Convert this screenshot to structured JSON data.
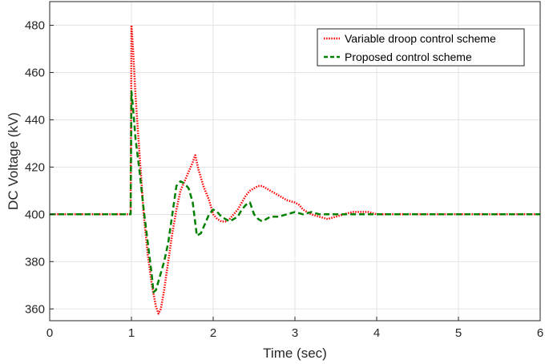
{
  "chart_data": {
    "type": "line",
    "title": "",
    "xlabel": "Time (sec)",
    "ylabel": "DC Voltage (kV)",
    "xlim": [
      0,
      6
    ],
    "ylim": [
      355,
      490
    ],
    "xticks": [
      "0",
      "1",
      "2",
      "3",
      "4",
      "5",
      "6"
    ],
    "yticks": [
      "360",
      "380",
      "400",
      "420",
      "440",
      "460",
      "480"
    ],
    "grid": true,
    "legend_position": "top-right",
    "series": [
      {
        "name": "Variable droop control scheme",
        "color": "#ff0000",
        "style": "dotted",
        "x": [
          0,
          0.5,
          0.99,
          1.0,
          1.02,
          1.05,
          1.1,
          1.15,
          1.2,
          1.25,
          1.3,
          1.33,
          1.36,
          1.4,
          1.45,
          1.5,
          1.55,
          1.6,
          1.65,
          1.7,
          1.75,
          1.78,
          1.82,
          1.88,
          1.95,
          2.0,
          2.05,
          2.1,
          2.15,
          2.2,
          2.25,
          2.3,
          2.35,
          2.4,
          2.45,
          2.5,
          2.55,
          2.6,
          2.7,
          2.8,
          2.9,
          3.0,
          3.05,
          3.1,
          3.2,
          3.3,
          3.4,
          3.5,
          3.6,
          3.7,
          3.8,
          3.9,
          4.0,
          4.2,
          4.4,
          4.6,
          4.8,
          5.0,
          5.2,
          5.5,
          6.0
        ],
        "y": [
          400,
          400,
          400,
          480,
          470,
          450,
          425,
          400,
          383,
          370,
          361,
          358,
          360,
          368,
          380,
          392,
          402,
          410,
          414,
          418,
          422,
          425,
          419,
          412,
          406,
          400,
          398,
          397,
          397,
          398,
          400,
          402,
          405,
          408,
          410,
          411,
          412,
          412,
          410,
          408,
          406,
          405,
          404,
          402,
          400,
          399,
          398,
          399,
          400,
          401,
          401,
          401,
          400,
          400,
          400,
          400,
          400,
          400,
          400,
          400,
          400
        ]
      },
      {
        "name": "Proposed control scheme",
        "color": "#008000",
        "style": "dashed",
        "x": [
          0,
          0.5,
          0.99,
          1.0,
          1.02,
          1.05,
          1.1,
          1.15,
          1.2,
          1.25,
          1.27,
          1.3,
          1.35,
          1.4,
          1.45,
          1.5,
          1.55,
          1.6,
          1.65,
          1.7,
          1.75,
          1.8,
          1.85,
          1.9,
          1.95,
          2.0,
          2.05,
          2.1,
          2.15,
          2.2,
          2.3,
          2.35,
          2.4,
          2.45,
          2.5,
          2.55,
          2.6,
          2.7,
          2.8,
          2.9,
          3.0,
          3.1,
          3.2,
          3.3,
          3.5,
          3.7,
          3.9,
          4.0,
          4.5,
          5.0,
          5.5,
          6.0
        ],
        "y": [
          400,
          400,
          400,
          452,
          445,
          432,
          418,
          402,
          388,
          374,
          367,
          368,
          374,
          380,
          388,
          400,
          412,
          414,
          413,
          411,
          405,
          391,
          392,
          396,
          400,
          402,
          401,
          399,
          398,
          397,
          399,
          402,
          404,
          405,
          400,
          398,
          397,
          399,
          399,
          400,
          401,
          400,
          401,
          400,
          400,
          400,
          400,
          400,
          400,
          400,
          400,
          400
        ]
      }
    ]
  }
}
